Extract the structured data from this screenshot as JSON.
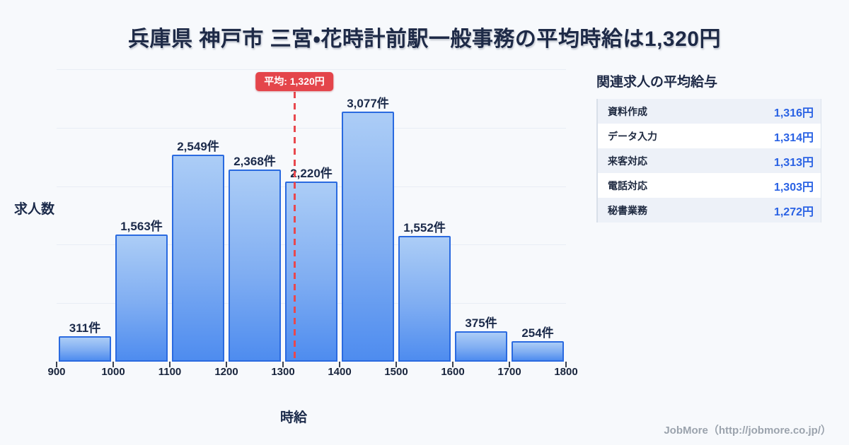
{
  "title": "兵庫県 神戸市 三宮・花時計前駅一般事務の平均時給は1,320円",
  "chart_data": {
    "type": "bar",
    "title": "兵庫県 神戸市 三宮・花時計前駅一般事務の時給分布",
    "xlabel": "時給",
    "ylabel": "求人数",
    "categories": [
      "900-1000",
      "1000-1100",
      "1100-1200",
      "1200-1300",
      "1300-1400",
      "1400-1500",
      "1500-1600",
      "1600-1700",
      "1700-1800"
    ],
    "x_ticks": [
      "900",
      "1000",
      "1100",
      "1200",
      "1300",
      "1400",
      "1500",
      "1600",
      "1700",
      "1800"
    ],
    "x_range": [
      900,
      1800
    ],
    "values": [
      311,
      1563,
      2549,
      2368,
      2220,
      3077,
      1552,
      375,
      254
    ],
    "bar_labels": [
      "311件",
      "1,563件",
      "2,549件",
      "2,368件",
      "2,220件",
      "3,077件",
      "1,552件",
      "375件",
      "254件"
    ],
    "ylim": [
      0,
      3600
    ],
    "grid": "horizontal",
    "gridline_count": 5,
    "legend": "none",
    "average_line": {
      "value": 1320,
      "label": "平均: 1,320円"
    }
  },
  "side_panel": {
    "header": "関連求人の平均給与",
    "rows": [
      {
        "label": "資料作成",
        "value": "1,316円"
      },
      {
        "label": "データ入力",
        "value": "1,314円"
      },
      {
        "label": "来客対応",
        "value": "1,313円"
      },
      {
        "label": "電話対応",
        "value": "1,303円"
      },
      {
        "label": "秘書業務",
        "value": "1,272円"
      }
    ]
  },
  "footer": {
    "credit": "JobMore（http://jobmore.co.jp/）"
  },
  "colors": {
    "background": "#f7f9fc",
    "title_text": "#1e2a47",
    "bar_fill_top": "#accdf6",
    "bar_fill_bottom": "#4e8cef",
    "bar_border": "#2a6ae0",
    "average_red": "#e4454b",
    "table_value_blue": "#2a62e4",
    "table_row_alt": "#edf1f8",
    "footer_gray": "#9ba3ad"
  }
}
